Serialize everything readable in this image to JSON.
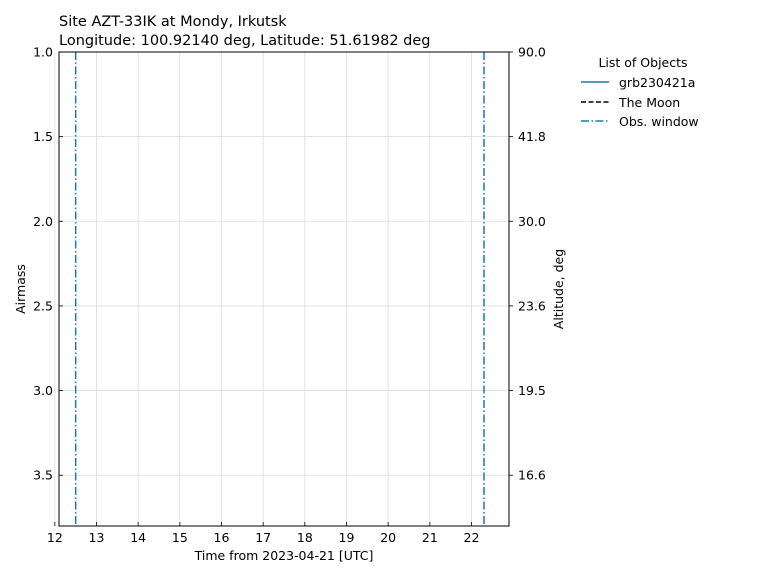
{
  "chart_data": {
    "type": "line",
    "title_lines": [
      "Site AZT-33IK at Mondy, Irkutsk",
      "Longitude: 100.92140 deg, Latitude: 51.61982 deg"
    ],
    "xlabel": "Time from 2023-04-21 [UTC]",
    "ylabel": "Airmass",
    "ylabel_right": "Altitude, deg",
    "xlim": [
      12.1,
      22.9
    ],
    "ylim": [
      1.0,
      3.8
    ],
    "y_inverted": true,
    "x_ticks": [
      12,
      13,
      14,
      15,
      16,
      17,
      18,
      19,
      20,
      21,
      22
    ],
    "y_ticks": [
      1.0,
      1.5,
      2.0,
      2.5,
      3.0,
      3.5
    ],
    "y_tick_labels": [
      "1.0",
      "1.5",
      "2.0",
      "2.5",
      "3.0",
      "3.5"
    ],
    "right_tick_airmass": [
      1.0,
      1.5,
      2.0,
      2.5,
      3.0,
      3.5
    ],
    "right_tick_labels": [
      "90.0",
      "41.8",
      "30.0",
      "23.6",
      "19.5",
      "16.6"
    ],
    "grid": true,
    "legend_placement": "outside-right-top",
    "legend": {
      "title": "List of Objects",
      "entries": [
        {
          "label": "grb230421a",
          "style": "solid",
          "color": "#1f77b4"
        },
        {
          "label": "The Moon",
          "style": "dashed",
          "color": "#000000"
        },
        {
          "label": "Obs. window",
          "style": "dashdot",
          "color": "#1f77b4"
        }
      ]
    },
    "series": [
      {
        "name": "Obs. window",
        "style": "dashdot",
        "color": "#1f77b4",
        "vertical_lines_x": [
          12.5,
          22.3
        ]
      }
    ]
  }
}
